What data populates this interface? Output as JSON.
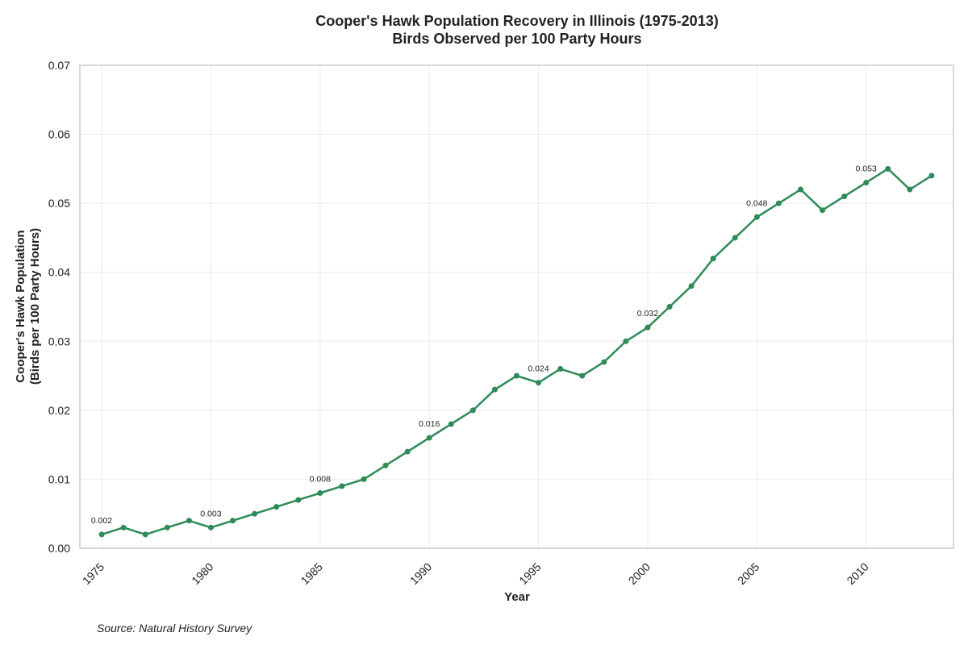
{
  "chart_data": {
    "type": "line",
    "title": [
      "Cooper's Hawk Population Recovery in Illinois (1975-2013)",
      "Birds Observed per 100 Party Hours"
    ],
    "xlabel": "Year",
    "ylabel": [
      "Cooper's Hawk Population",
      "(Birds per 100 Party Hours)"
    ],
    "xlim": [
      1974,
      2014
    ],
    "ylim": [
      0,
      0.07
    ],
    "x_ticks": [
      1975,
      1980,
      1985,
      1990,
      1995,
      2000,
      2005,
      2010
    ],
    "y_ticks": [
      0.0,
      0.01,
      0.02,
      0.03,
      0.04,
      0.05,
      0.06,
      0.07
    ],
    "y_tick_labels": [
      "0.00",
      "0.01",
      "0.02",
      "0.03",
      "0.04",
      "0.05",
      "0.06",
      "0.07"
    ],
    "grid": true,
    "line_color": "#2e8b57",
    "series": [
      {
        "x": [
          1975,
          1976,
          1977,
          1978,
          1979,
          1980,
          1981,
          1982,
          1983,
          1984,
          1985,
          1986,
          1987,
          1988,
          1989,
          1990,
          1991,
          1992,
          1993,
          1994,
          1995,
          1996,
          1997,
          1998,
          1999,
          2000,
          2001,
          2002,
          2003,
          2004,
          2005,
          2006,
          2007,
          2008,
          2009,
          2010,
          2011,
          2012,
          2013
        ],
        "y": [
          0.002,
          0.003,
          0.002,
          0.003,
          0.004,
          0.003,
          0.004,
          0.005,
          0.006,
          0.007,
          0.008,
          0.009,
          0.01,
          0.012,
          0.014,
          0.016,
          0.018,
          0.02,
          0.023,
          0.025,
          0.024,
          0.026,
          0.025,
          0.027,
          0.03,
          0.032,
          0.035,
          0.038,
          0.042,
          0.045,
          0.048,
          0.05,
          0.052,
          0.049,
          0.051,
          0.053,
          0.055,
          0.052,
          0.054
        ]
      }
    ],
    "annotations": [
      {
        "x": 1975,
        "y": 0.002,
        "text": "0.002"
      },
      {
        "x": 1980,
        "y": 0.003,
        "text": "0.003"
      },
      {
        "x": 1985,
        "y": 0.008,
        "text": "0.008"
      },
      {
        "x": 1990,
        "y": 0.016,
        "text": "0.016"
      },
      {
        "x": 1995,
        "y": 0.024,
        "text": "0.024"
      },
      {
        "x": 2000,
        "y": 0.032,
        "text": "0.032"
      },
      {
        "x": 2005,
        "y": 0.048,
        "text": "0.048"
      },
      {
        "x": 2010,
        "y": 0.053,
        "text": "0.053"
      }
    ],
    "source": "Source: Natural History Survey"
  }
}
